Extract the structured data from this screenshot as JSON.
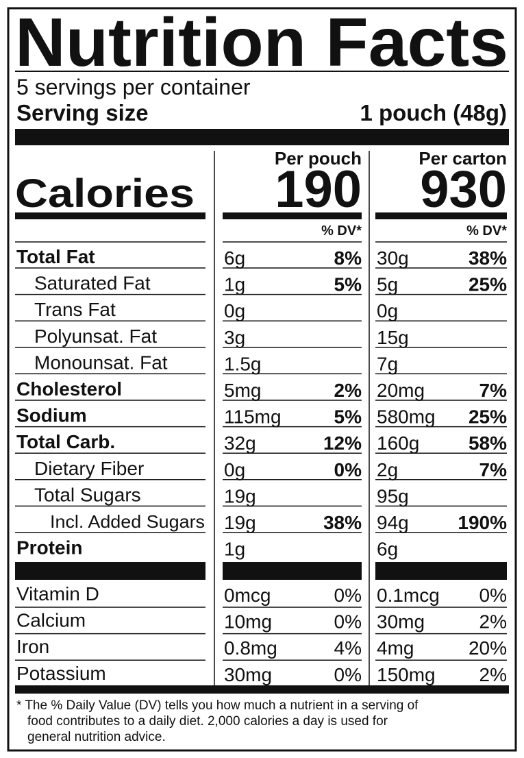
{
  "title": "Nutrition Facts",
  "servings": "5 servings per container",
  "serving_size": {
    "label": "Serving size",
    "value": "1 pouch (48g)"
  },
  "columns": [
    "Per pouch",
    "Per carton"
  ],
  "calories": {
    "label": "Calories",
    "values": [
      "190",
      "930"
    ]
  },
  "dv_header": "% DV*",
  "nutrients": [
    {
      "label": "Total Fat",
      "per_pouch": [
        "6g",
        "8%"
      ],
      "per_carton": [
        "30g",
        "38%"
      ]
    },
    {
      "label": "Saturated Fat",
      "per_pouch": [
        "1g",
        "5%"
      ],
      "per_carton": [
        "5g",
        "25%"
      ]
    },
    {
      "label": "Trans Fat",
      "per_pouch": [
        "0g"
      ],
      "per_carton": [
        "0g"
      ]
    },
    {
      "label": "Polyunsat. Fat",
      "per_pouch": [
        "3g"
      ],
      "per_carton": [
        "15g"
      ]
    },
    {
      "label": "Monounsat. Fat",
      "per_pouch": [
        "1.5g"
      ],
      "per_carton": [
        "7g"
      ]
    },
    {
      "label": "Cholesterol",
      "per_pouch": [
        "5mg",
        "2%"
      ],
      "per_carton": [
        "20mg",
        "7%"
      ]
    },
    {
      "label": "Sodium",
      "per_pouch": [
        "115mg",
        "5%"
      ],
      "per_carton": [
        "580mg",
        "25%"
      ]
    },
    {
      "label": "Total Carb.",
      "per_pouch": [
        "32g",
        "12%"
      ],
      "per_carton": [
        "160g",
        "58%"
      ]
    },
    {
      "label": "Dietary Fiber",
      "per_pouch": [
        "0g",
        "0%"
      ],
      "per_carton": [
        "2g",
        "7%"
      ]
    },
    {
      "label": "Total Sugars",
      "per_pouch": [
        "19g"
      ],
      "per_carton": [
        "95g"
      ]
    },
    {
      "label": "Incl. Added Sugars",
      "per_pouch": [
        "19g",
        "38%"
      ],
      "per_carton": [
        "94g",
        "190%"
      ]
    },
    {
      "label": "Protein",
      "per_pouch": [
        "1g"
      ],
      "per_carton": [
        "6g"
      ]
    }
  ],
  "vitamins": [
    {
      "label": "Vitamin D",
      "per_pouch": [
        "0mcg",
        "0%"
      ],
      "per_carton": [
        "0.1mcg",
        "0%"
      ]
    },
    {
      "label": "Calcium",
      "per_pouch": [
        "10mg",
        "0%"
      ],
      "per_carton": [
        "30mg",
        "2%"
      ]
    },
    {
      "label": "Iron",
      "per_pouch": [
        "0.8mg",
        "4%"
      ],
      "per_carton": [
        "4mg",
        "20%"
      ]
    },
    {
      "label": "Potassium",
      "per_pouch": [
        "30mg",
        "0%"
      ],
      "per_carton": [
        "150mg",
        "2%"
      ]
    }
  ],
  "footnote": [
    "* The % Daily Value (DV) tells you how much a nutrient in a serving of",
    "food contributes to a daily diet. 2,000 calories a day is used for",
    "general nutrition advice."
  ]
}
